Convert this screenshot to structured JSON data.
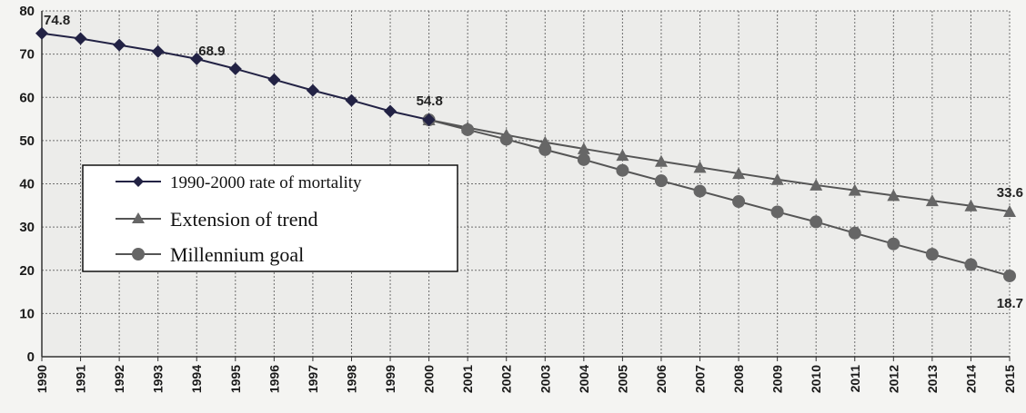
{
  "chart_data": {
    "type": "line",
    "title": "",
    "xlabel": "",
    "ylabel": "",
    "x": [
      "1990",
      "1991",
      "1992",
      "1993",
      "1994",
      "1995",
      "1996",
      "1997",
      "1998",
      "1999",
      "2000",
      "2001",
      "2002",
      "2003",
      "2004",
      "2005",
      "2006",
      "2007",
      "2008",
      "2009",
      "2010",
      "2011",
      "2012",
      "2013",
      "2014",
      "2015"
    ],
    "ylim": [
      0,
      80
    ],
    "yticks": [
      "0",
      "10",
      "20",
      "30",
      "40",
      "50",
      "60",
      "70",
      "80"
    ],
    "grid": true,
    "legend_position": "left",
    "series": [
      {
        "name": "1990-2000 rate of mortality",
        "marker": "diamond",
        "color": "#222244",
        "x": [
          "1990",
          "1991",
          "1992",
          "1993",
          "1994",
          "1995",
          "1996",
          "1997",
          "1998",
          "1999",
          "2000"
        ],
        "values": [
          74.8,
          73.6,
          72.1,
          70.6,
          68.9,
          66.6,
          64.1,
          61.6,
          59.3,
          56.8,
          54.8
        ]
      },
      {
        "name": "Extension of trend",
        "marker": "triangle",
        "color": "#555555",
        "x": [
          "2000",
          "2001",
          "2002",
          "2003",
          "2004",
          "2005",
          "2006",
          "2007",
          "2008",
          "2009",
          "2010",
          "2011",
          "2012",
          "2013",
          "2014",
          "2015"
        ],
        "values": [
          54.8,
          53.0,
          51.3,
          49.6,
          48.1,
          46.6,
          45.2,
          43.8,
          42.4,
          41.0,
          39.7,
          38.5,
          37.3,
          36.1,
          34.9,
          33.6
        ]
      },
      {
        "name": "Millennium goal",
        "marker": "circle",
        "color": "#555555",
        "x": [
          "2000",
          "2001",
          "2002",
          "2003",
          "2004",
          "2005",
          "2006",
          "2007",
          "2008",
          "2009",
          "2010",
          "2011",
          "2012",
          "2013",
          "2014",
          "2015"
        ],
        "values": [
          54.8,
          52.5,
          50.3,
          47.9,
          45.6,
          43.1,
          40.7,
          38.3,
          35.9,
          33.5,
          31.2,
          28.6,
          26.1,
          23.7,
          21.3,
          18.7
        ]
      }
    ],
    "annotations": [
      {
        "x": "1990",
        "text": "74.8"
      },
      {
        "x": "1994",
        "text": "68.9"
      },
      {
        "x": "2000",
        "text": "54.8"
      },
      {
        "x": "2015",
        "text": "33.6"
      },
      {
        "x": "2015",
        "text": "18.7"
      }
    ]
  }
}
